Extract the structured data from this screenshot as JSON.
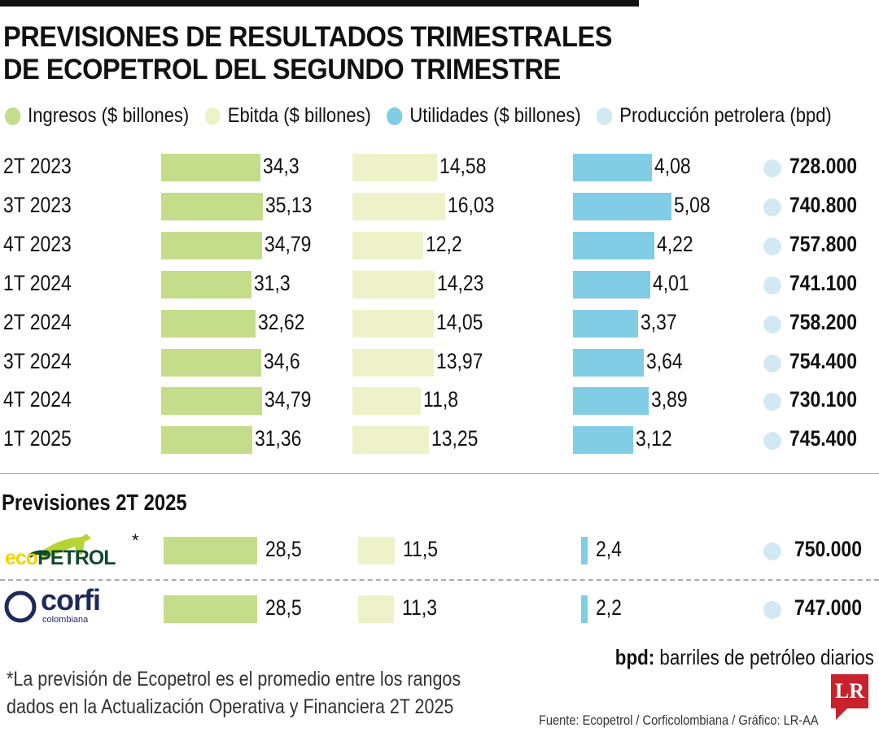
{
  "title_line1": "PREVISIONES DE RESULTADOS TRIMESTRALES",
  "title_line2": "DE ECOPETROL DEL SEGUNDO TRIMESTRE",
  "colors": {
    "ingresos": "#c5dc8a",
    "ebitda": "#eef2c9",
    "utilidades": "#80cde5",
    "produccion": "#d2e9f3"
  },
  "chart_data": {
    "type": "bar",
    "title": "PREVISIONES DE RESULTADOS TRIMESTRALES DE ECOPETROL DEL SEGUNDO TRIMESTRE",
    "legend": [
      "Ingresos ($ billones)",
      "Ebitda ($ billones)",
      "Utilidades ($ billones)",
      "Producción petrolera (bpd)"
    ],
    "categories": [
      "2T 2023",
      "3T 2023",
      "4T 2023",
      "1T 2024",
      "2T 2024",
      "3T 2024",
      "4T 2024",
      "1T 2025"
    ],
    "series": [
      {
        "name": "Ingresos ($ billones)",
        "values": [
          34.3,
          35.13,
          34.79,
          31.3,
          32.62,
          34.6,
          34.79,
          31.36
        ],
        "labels": [
          "34,3",
          "35,13",
          "34,79",
          "31,3",
          "32,62",
          "34,6",
          "34,79",
          "31,36"
        ]
      },
      {
        "name": "Ebitda ($ billones)",
        "values": [
          14.58,
          16.03,
          12.2,
          14.23,
          14.05,
          13.97,
          11.8,
          13.25
        ],
        "labels": [
          "14,58",
          "16,03",
          "12,2",
          "14,23",
          "14,05",
          "13,97",
          "11,8",
          "13,25"
        ]
      },
      {
        "name": "Utilidades ($ billones)",
        "values": [
          4.08,
          5.08,
          4.22,
          4.01,
          3.37,
          3.64,
          3.89,
          3.12
        ],
        "labels": [
          "4,08",
          "5,08",
          "4,22",
          "4,01",
          "3,37",
          "3,64",
          "3,89",
          "3,12"
        ]
      },
      {
        "name": "Producción petrolera (bpd)",
        "values": [
          728000,
          740800,
          757800,
          741100,
          758200,
          754400,
          730100,
          745400
        ],
        "labels": [
          "728.000",
          "740.800",
          "757.800",
          "741.100",
          "758.200",
          "754.400",
          "730.100",
          "745.400"
        ]
      }
    ],
    "forecasts": {
      "subtitle": "Previsiones 2T 2025",
      "rows": [
        {
          "source": "ecopetrol",
          "asterisk": "*",
          "values": [
            28.5,
            11.5,
            2.4,
            750000
          ],
          "labels": [
            "28,5",
            "11,5",
            "2,4",
            "750.000"
          ]
        },
        {
          "source": "corfi colombiana",
          "values": [
            28.5,
            11.3,
            2.2,
            747000
          ],
          "labels": [
            "28,5",
            "11,3",
            "2,2",
            "747.000"
          ]
        }
      ]
    }
  },
  "logos": {
    "ecopetrol_eco": "eco",
    "ecopetrol_petrol": "PETROL",
    "corfi": "corfi",
    "corfi_sub": "colombiana",
    "lr": "LR"
  },
  "note_line1": "*La previsión de Ecopetrol es el promedio entre los rangos",
  "note_line2": "dados en la Actualización Operativa y Financiera 2T 2025",
  "bpd_key": "bpd:",
  "bpd_text": " barriles de petróleo diarios",
  "source": "Fuente: Ecopetrol / Corficolombiana / Gráfico: LR-AA"
}
